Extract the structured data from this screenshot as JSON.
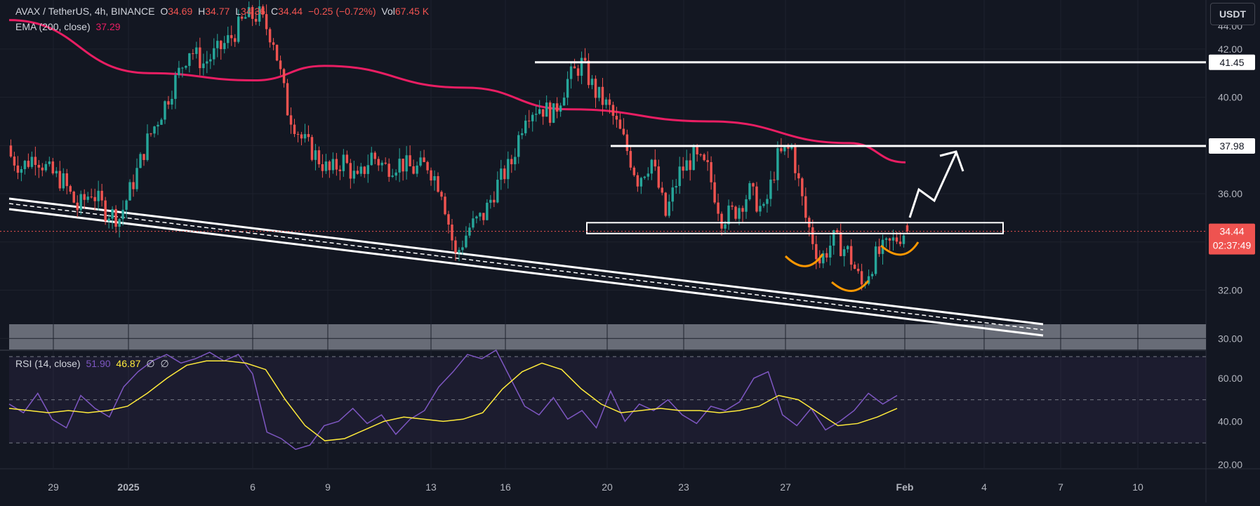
{
  "header": {
    "symbol": "AVAX / TetherUS, 4h, BINANCE",
    "open_label": "O",
    "open": "34.69",
    "high_label": "H",
    "high": "34.77",
    "low_label": "L",
    "low": "34.36",
    "close_label": "C",
    "close": "34.44",
    "change": "−0.25 (−0.72%)",
    "vol_label": "Vol",
    "vol": "67.45 K",
    "ema_label": "EMA (200, close)",
    "ema_value": "37.29"
  },
  "rsi_legend": {
    "label": "RSI (14, close)",
    "rsi_value": "51.90",
    "rsi_ma_value": "46.87",
    "extra1": "∅",
    "extra2": "∅"
  },
  "currency_button": "USDT",
  "colors": {
    "background": "#131722",
    "up": "#26a69a",
    "down": "#ef5350",
    "ema": "#e91e63",
    "rsi": "#7e57c2",
    "rsi_ma": "#ffeb3b",
    "annotation": "#ffffff",
    "pattern": "#ff9800"
  },
  "chart_data": [
    {
      "type": "candlestick",
      "title": "AVAX / TetherUS, 4h, BINANCE",
      "x_ticks": [
        "29",
        "2025",
        "6",
        "9",
        "13",
        "16",
        "20",
        "23",
        "27",
        "Feb",
        "4",
        "7",
        "10"
      ],
      "y_ticks": [
        "42.00",
        "40.00",
        "38.00",
        "36.00",
        "34.00",
        "32.00",
        "30.00"
      ],
      "y_top_partial": "44.00",
      "ylim": [
        29.6,
        43.8
      ],
      "price_labels": [
        {
          "text": "41.45",
          "value": 41.45,
          "style": "level"
        },
        {
          "text": "37.98",
          "value": 37.98,
          "style": "level"
        },
        {
          "text": "34.44",
          "value": 34.44,
          "style": "last-price"
        },
        {
          "text": "02:37:49",
          "value": 34.44,
          "style": "countdown"
        }
      ],
      "close_series": [
        {
          "t": 0,
          "c": 37.7
        },
        {
          "t": 4,
          "c": 37.1
        },
        {
          "t": 8,
          "c": 37.6
        },
        {
          "t": 12,
          "c": 36.9
        },
        {
          "t": 16,
          "c": 36.5
        },
        {
          "t": 20,
          "c": 35.4
        },
        {
          "t": 24,
          "c": 36.1
        },
        {
          "t": 28,
          "c": 35.3
        },
        {
          "t": 32,
          "c": 35.0
        },
        {
          "t": 36,
          "c": 36.5
        },
        {
          "t": 40,
          "c": 38.2
        },
        {
          "t": 44,
          "c": 39.4
        },
        {
          "t": 48,
          "c": 40.7
        },
        {
          "t": 52,
          "c": 42.0
        },
        {
          "t": 56,
          "c": 41.4
        },
        {
          "t": 60,
          "c": 41.9
        },
        {
          "t": 64,
          "c": 42.5
        },
        {
          "t": 68,
          "c": 43.3
        },
        {
          "t": 72,
          "c": 43.4
        },
        {
          "t": 76,
          "c": 42.4
        },
        {
          "t": 80,
          "c": 39.5
        },
        {
          "t": 84,
          "c": 38.3
        },
        {
          "t": 88,
          "c": 37.6
        },
        {
          "t": 92,
          "c": 36.9
        },
        {
          "t": 96,
          "c": 37.4
        },
        {
          "t": 100,
          "c": 36.5
        },
        {
          "t": 104,
          "c": 37.6
        },
        {
          "t": 108,
          "c": 37.1
        },
        {
          "t": 112,
          "c": 37.3
        },
        {
          "t": 116,
          "c": 37.0
        },
        {
          "t": 120,
          "c": 37.2
        },
        {
          "t": 124,
          "c": 36.2
        },
        {
          "t": 128,
          "c": 33.4
        },
        {
          "t": 132,
          "c": 34.6
        },
        {
          "t": 136,
          "c": 35.1
        },
        {
          "t": 140,
          "c": 36.4
        },
        {
          "t": 144,
          "c": 37.3
        },
        {
          "t": 148,
          "c": 39.4
        },
        {
          "t": 152,
          "c": 39.6
        },
        {
          "t": 156,
          "c": 39.3
        },
        {
          "t": 160,
          "c": 40.7
        },
        {
          "t": 164,
          "c": 41.4
        },
        {
          "t": 168,
          "c": 40.2
        },
        {
          "t": 172,
          "c": 39.5
        },
        {
          "t": 176,
          "c": 38.2
        },
        {
          "t": 180,
          "c": 36.6
        },
        {
          "t": 184,
          "c": 37.4
        },
        {
          "t": 188,
          "c": 35.1
        },
        {
          "t": 192,
          "c": 36.9
        },
        {
          "t": 196,
          "c": 37.5
        },
        {
          "t": 200,
          "c": 37.0
        },
        {
          "t": 204,
          "c": 35.0
        },
        {
          "t": 208,
          "c": 35.3
        },
        {
          "t": 212,
          "c": 36.1
        },
        {
          "t": 216,
          "c": 35.2
        },
        {
          "t": 220,
          "c": 37.5
        },
        {
          "t": 224,
          "c": 37.9
        },
        {
          "t": 228,
          "c": 35.0
        },
        {
          "t": 232,
          "c": 33.2
        },
        {
          "t": 236,
          "c": 34.1
        },
        {
          "t": 240,
          "c": 33.6
        },
        {
          "t": 244,
          "c": 32.2
        },
        {
          "t": 248,
          "c": 33.4
        },
        {
          "t": 252,
          "c": 33.9
        },
        {
          "t": 256,
          "c": 34.4
        }
      ],
      "ema_series": [
        {
          "t": 0,
          "v": 43.2
        },
        {
          "t": 40,
          "v": 41.0
        },
        {
          "t": 70,
          "v": 40.7
        },
        {
          "t": 90,
          "v": 41.3
        },
        {
          "t": 130,
          "v": 40.4
        },
        {
          "t": 160,
          "v": 39.5
        },
        {
          "t": 200,
          "v": 39.0
        },
        {
          "t": 240,
          "v": 38.1
        },
        {
          "t": 256,
          "v": 37.3
        }
      ],
      "annotations": [
        "Horizontal resistance at 41.45",
        "Horizontal resistance at 37.98",
        "Support/resistance box near 34.5",
        "Descending channel lower boundary",
        "Inverse head and shoulders pattern",
        "Projected breakout arrow toward 37.98"
      ]
    },
    {
      "type": "line",
      "title": "RSI (14, close)",
      "y_ticks": [
        "60.00",
        "40.00",
        "20.00"
      ],
      "ylim": [
        18,
        72
      ],
      "bands": [
        70,
        50,
        30
      ],
      "rsi": [
        48,
        44,
        53,
        41,
        37,
        52,
        46,
        42,
        56,
        63,
        68,
        71,
        67,
        69,
        72,
        68,
        71,
        62,
        35,
        32,
        27,
        29,
        38,
        40,
        46,
        39,
        43,
        34,
        41,
        45,
        56,
        63,
        71,
        69,
        73,
        60,
        47,
        43,
        51,
        41,
        45,
        37,
        54,
        40,
        48,
        45,
        50,
        43,
        39,
        47,
        45,
        49,
        60,
        63,
        43,
        38,
        46,
        36,
        40,
        45,
        53,
        48,
        52
      ],
      "rsi_ma": [
        46,
        45,
        44,
        45,
        44,
        45,
        47,
        53,
        60,
        66,
        68,
        68,
        67,
        64,
        50,
        38,
        31,
        32,
        36,
        40,
        42,
        41,
        40,
        41,
        44,
        55,
        63,
        67,
        64,
        55,
        48,
        44,
        45,
        46,
        45,
        45,
        44,
        45,
        47,
        52,
        50,
        44,
        38,
        39,
        42,
        46
      ]
    }
  ]
}
